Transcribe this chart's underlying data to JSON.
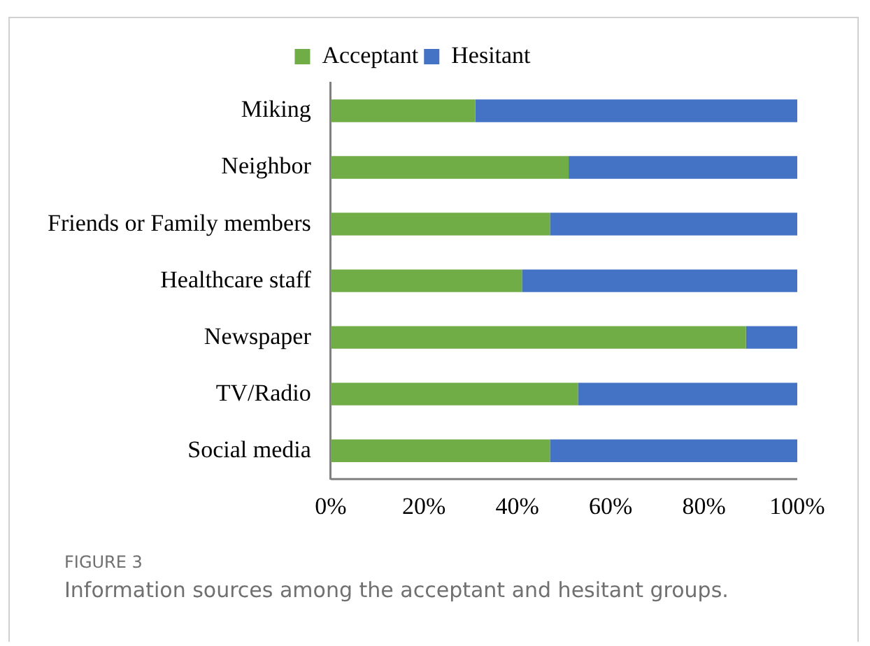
{
  "chart_data": {
    "type": "bar",
    "orientation": "horizontal",
    "stacked": true,
    "legend": "top",
    "categories": [
      "Miking",
      "Neighbor",
      "Friends or Family members",
      "Healthcare staff",
      "Newspaper",
      "TV/Radio",
      "Social media"
    ],
    "series": [
      {
        "name": "Acceptant",
        "color": "#70ad47",
        "values": [
          31,
          51,
          47,
          41,
          89,
          53,
          47
        ]
      },
      {
        "name": "Hesitant",
        "color": "#4472c4",
        "values": [
          69,
          49,
          53,
          59,
          11,
          47,
          53
        ]
      }
    ],
    "xlim": [
      0,
      100
    ],
    "xticks": [
      {
        "value": 0,
        "label": "0%"
      },
      {
        "value": 20,
        "label": "20%"
      },
      {
        "value": 40,
        "label": "40%"
      },
      {
        "value": 60,
        "label": "60%"
      },
      {
        "value": 80,
        "label": "80%"
      },
      {
        "value": 100,
        "label": "100%"
      }
    ],
    "grid": false,
    "annotations": [
      "FIGURE 3",
      "Information sources among the acceptant and hesitant groups."
    ]
  }
}
